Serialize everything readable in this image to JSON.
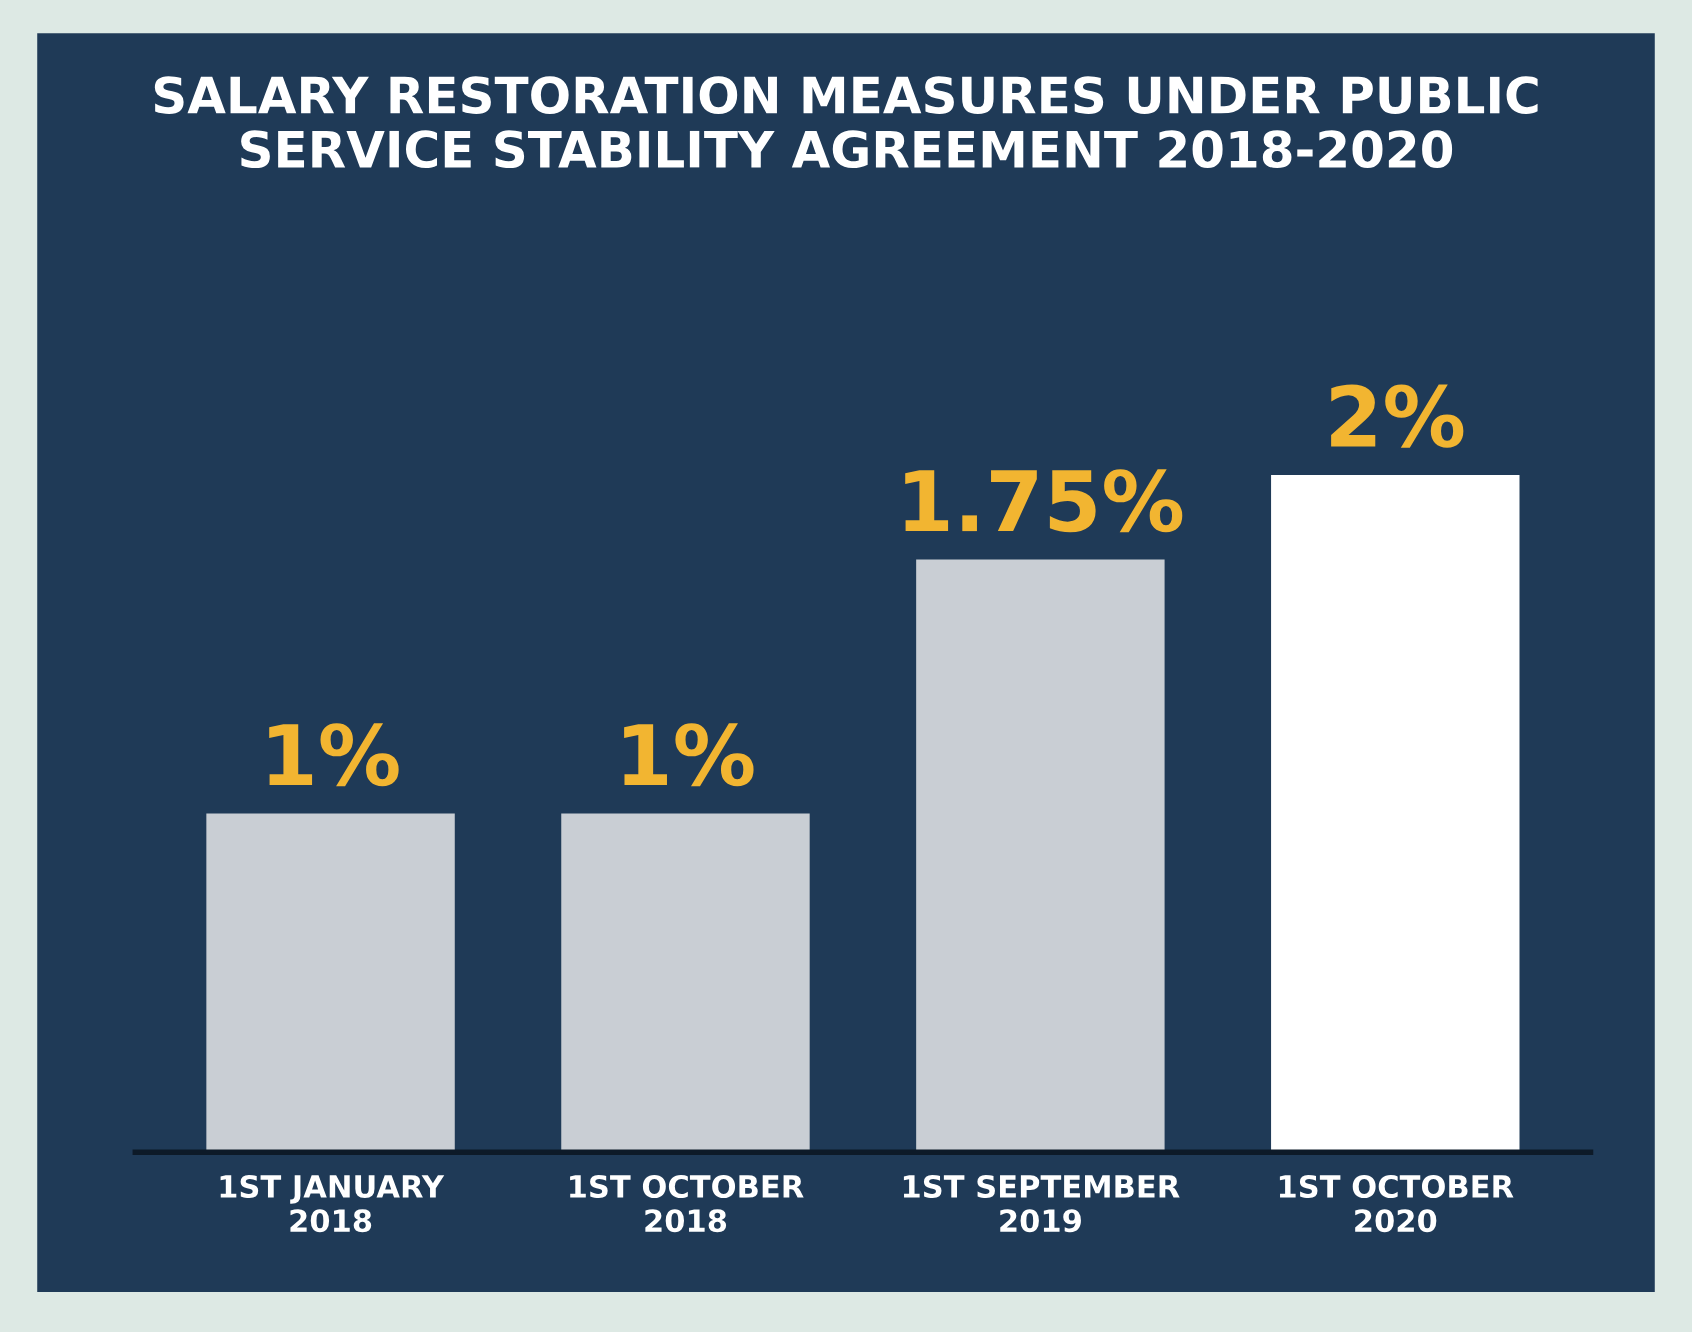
{
  "chart_data": {
    "type": "bar",
    "title": "SALARY RESTORATION MEASURES UNDER PUBLIC\nSERVICE STABILITY AGREEMENT 2018-2020",
    "categories": [
      "1ST JANUARY\n2018",
      "1ST OCTOBER\n2018",
      "1ST SEPTEMBER\n2019",
      "1ST OCTOBER\n2020"
    ],
    "values": [
      1,
      1,
      1.75,
      2
    ],
    "colors": [
      "#c9ced4",
      "#c9ced4",
      "#c9ced4",
      "#ffffff"
    ],
    "value_labels": [
      "1%",
      "1%",
      "1.75%",
      "2%"
    ]
  }
}
